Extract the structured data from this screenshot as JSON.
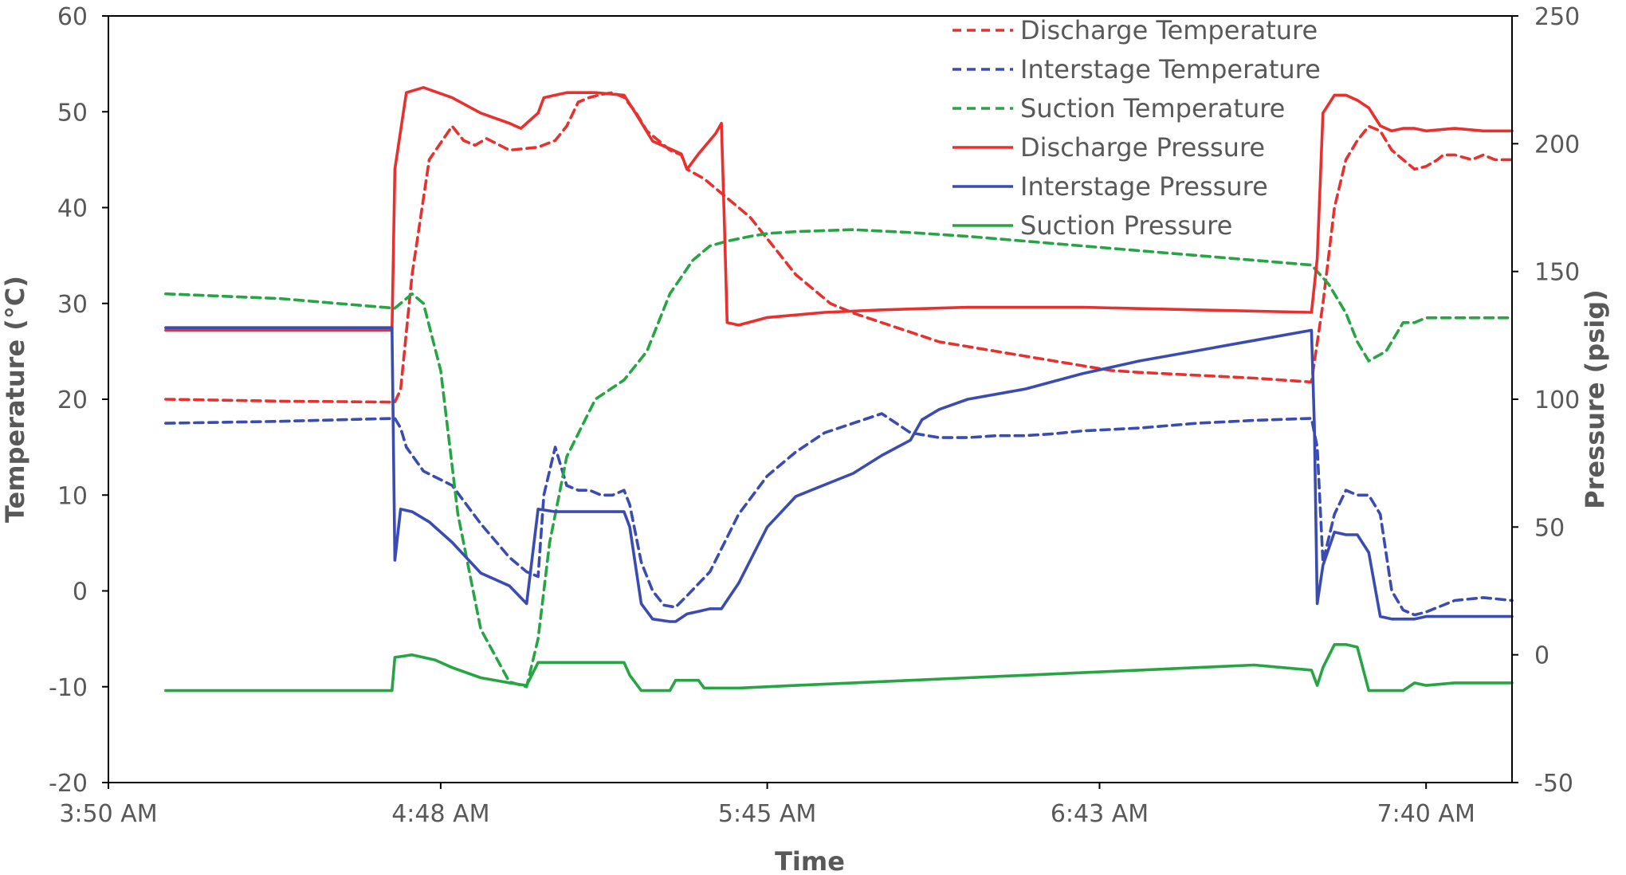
{
  "chart_data": {
    "type": "line",
    "title": "",
    "xlabel": "Time",
    "ylabel": "Temperature (°C)",
    "y2label": "Pressure (psig)",
    "xlim": [
      "3:50 AM",
      "7:55 AM"
    ],
    "xlim_minutes": [
      230,
      475
    ],
    "ylim": [
      -20,
      60
    ],
    "y2lim": [
      -50,
      250
    ],
    "xticks": [
      {
        "label": "3:50 AM",
        "minutes": 230
      },
      {
        "label": "4:48 AM",
        "minutes": 288
      },
      {
        "label": "5:45 AM",
        "minutes": 345
      },
      {
        "label": "6:43 AM",
        "minutes": 403
      },
      {
        "label": "7:40 AM",
        "minutes": 460
      }
    ],
    "yticks": [
      -20,
      -10,
      0,
      10,
      20,
      30,
      40,
      50,
      60
    ],
    "y2ticks": [
      -50,
      0,
      50,
      100,
      150,
      200,
      250
    ],
    "grid": false,
    "legend_position": "top-center",
    "series": [
      {
        "name": "Discharge Temperature",
        "axis": "left",
        "color": "#e8312e",
        "dash": true,
        "x": [
          240,
          260,
          280,
          281,
          283,
          286,
          290,
          292,
          294,
          296,
          300,
          305,
          308,
          310,
          312,
          314,
          316,
          318,
          320,
          322,
          324,
          326,
          328,
          330,
          331,
          334,
          338,
          342,
          346,
          350,
          354,
          356,
          360,
          365,
          370,
          375,
          380,
          385,
          390,
          395,
          400,
          405,
          410,
          420,
          430,
          440,
          442,
          444,
          446,
          448,
          450,
          452,
          454,
          456,
          458,
          460,
          462,
          463,
          465,
          468,
          470,
          472,
          475
        ],
        "y": [
          20,
          19.8,
          19.7,
          21,
          33,
          45,
          48.5,
          47,
          46.5,
          47.2,
          46,
          46.3,
          47,
          48.5,
          51,
          51.5,
          51.8,
          52,
          51.5,
          50,
          48,
          47,
          46,
          45.5,
          44,
          43,
          41,
          39,
          36,
          33,
          31,
          30,
          29,
          28,
          27,
          26,
          25.5,
          25,
          24.5,
          24,
          23.5,
          23,
          22.8,
          22.5,
          22.2,
          21.8,
          30,
          40,
          45,
          47,
          48.5,
          48,
          46,
          45,
          44,
          44.3,
          45,
          45.5,
          45.5,
          45,
          45.5,
          45,
          45
        ]
      },
      {
        "name": "Interstage Temperature",
        "axis": "left",
        "color": "#3a4bb1",
        "dash": true,
        "x": [
          240,
          260,
          280,
          281,
          282,
          285,
          290,
          295,
          300,
          303,
          305,
          306,
          308,
          310,
          312,
          314,
          316,
          318,
          320,
          321,
          323,
          325,
          327,
          329,
          331,
          335,
          340,
          345,
          350,
          355,
          360,
          365,
          370,
          375,
          380,
          385,
          390,
          395,
          400,
          410,
          420,
          430,
          440,
          441,
          442,
          444,
          446,
          448,
          450,
          452,
          454,
          456,
          458,
          460,
          465,
          470,
          475
        ],
        "y": [
          17.5,
          17.7,
          18,
          17,
          15,
          12.5,
          11,
          7,
          3.5,
          2,
          1.5,
          10,
          15,
          11,
          10.5,
          10.5,
          10,
          10,
          10.5,
          9,
          3,
          0,
          -1.5,
          -1.7,
          -0.5,
          2,
          8,
          12,
          14.5,
          16.5,
          17.5,
          18.5,
          16.5,
          16,
          16,
          16.2,
          16.2,
          16.4,
          16.7,
          17,
          17.5,
          17.8,
          18,
          15,
          3,
          8,
          10.5,
          10,
          10,
          8,
          0,
          -2,
          -2.5,
          -2.2,
          -1,
          -0.7,
          -1
        ]
      },
      {
        "name": "Suction Temperature",
        "axis": "left",
        "color": "#27a545",
        "dash": true,
        "x": [
          240,
          260,
          280,
          283,
          285,
          288,
          291,
          295,
          300,
          303,
          305,
          307,
          310,
          315,
          320,
          324,
          328,
          332,
          335,
          338,
          342,
          345,
          350,
          360,
          370,
          380,
          390,
          400,
          410,
          420,
          430,
          440,
          443,
          446,
          448,
          450,
          453,
          456,
          458,
          460,
          465,
          470,
          475
        ],
        "y": [
          31,
          30.5,
          29.5,
          31,
          30,
          23,
          8,
          -4,
          -9.5,
          -10,
          -5,
          5,
          14,
          20,
          22,
          25,
          31,
          34.5,
          36,
          36.5,
          37,
          37.3,
          37.5,
          37.7,
          37.4,
          37,
          36.5,
          36,
          35.5,
          35,
          34.5,
          34,
          32,
          29,
          26,
          24,
          25,
          28,
          28,
          28.5,
          28.5,
          28.5,
          28.5
        ]
      },
      {
        "name": "Discharge Pressure",
        "axis": "right",
        "color": "#e8312e",
        "dash": false,
        "x": [
          240,
          260,
          279.5,
          280,
          282,
          285,
          290,
          295,
          300,
          302,
          305,
          306,
          308,
          310,
          315,
          320,
          322,
          325,
          328,
          330,
          331,
          333,
          336,
          337,
          337.5,
          338,
          340,
          345,
          355,
          365,
          380,
          400,
          420,
          440,
          441,
          442,
          444,
          446,
          448,
          450,
          452,
          454,
          456,
          458,
          460,
          465,
          470,
          475
        ],
        "y": [
          127,
          127,
          127,
          190,
          220,
          222,
          218,
          212,
          208,
          206,
          212,
          218,
          219,
          220,
          220,
          219,
          212,
          201,
          198,
          196,
          190,
          196,
          204,
          208,
          170,
          130,
          129,
          132,
          134,
          135,
          136,
          136,
          135,
          134,
          155,
          212,
          219,
          219,
          217,
          214,
          207,
          205,
          206,
          206,
          205,
          206,
          205,
          205
        ]
      },
      {
        "name": "Interstage Pressure",
        "axis": "right",
        "color": "#3a4bb1",
        "dash": false,
        "x": [
          240,
          260,
          279.5,
          280,
          281,
          283,
          286,
          290,
          295,
          300,
          303,
          305,
          308,
          312,
          316,
          320,
          321,
          323,
          325,
          328,
          329,
          331,
          333,
          335,
          337,
          340,
          345,
          350,
          360,
          365,
          370,
          372,
          375,
          380,
          390,
          400,
          410,
          420,
          430,
          440,
          440.5,
          441,
          442,
          444,
          446,
          448,
          450,
          452,
          454,
          456,
          458,
          460,
          465,
          470,
          475
        ],
        "y": [
          128,
          128,
          128,
          37,
          57,
          56,
          52,
          44,
          32,
          27,
          20,
          57,
          56,
          56,
          56,
          56,
          50,
          20,
          14,
          13,
          13,
          16,
          17,
          18,
          18,
          28,
          50,
          62,
          71,
          78,
          84,
          92,
          96,
          100,
          104,
          110,
          115,
          119,
          123,
          127,
          90,
          20,
          35,
          48,
          47,
          47,
          40,
          15,
          14,
          14,
          14,
          15,
          15,
          15,
          15
        ]
      },
      {
        "name": "Suction Pressure",
        "axis": "right",
        "color": "#27a545",
        "dash": false,
        "x": [
          240,
          260,
          279.5,
          280,
          283,
          287,
          290,
          295,
          300,
          303,
          305,
          308,
          312,
          316,
          320,
          321,
          323,
          325,
          327,
          328,
          329,
          333,
          334,
          335,
          340,
          350,
          360,
          370,
          380,
          390,
          400,
          410,
          420,
          430,
          440,
          441,
          442,
          444,
          446,
          448,
          450,
          452,
          454,
          456,
          458,
          460,
          465,
          470,
          475
        ],
        "y": [
          -14,
          -14,
          -14,
          -1,
          0,
          -2,
          -5,
          -9,
          -11,
          -12,
          -3,
          -3,
          -3,
          -3,
          -3,
          -8,
          -14,
          -14,
          -14,
          -14,
          -10,
          -10,
          -13,
          -13,
          -13,
          -12,
          -11,
          -10,
          -9,
          -8,
          -7,
          -6,
          -5,
          -4,
          -6,
          -12,
          -5,
          4,
          4,
          3,
          -14,
          -14,
          -14,
          -14,
          -11,
          -12,
          -11,
          -11,
          -11
        ]
      }
    ]
  }
}
